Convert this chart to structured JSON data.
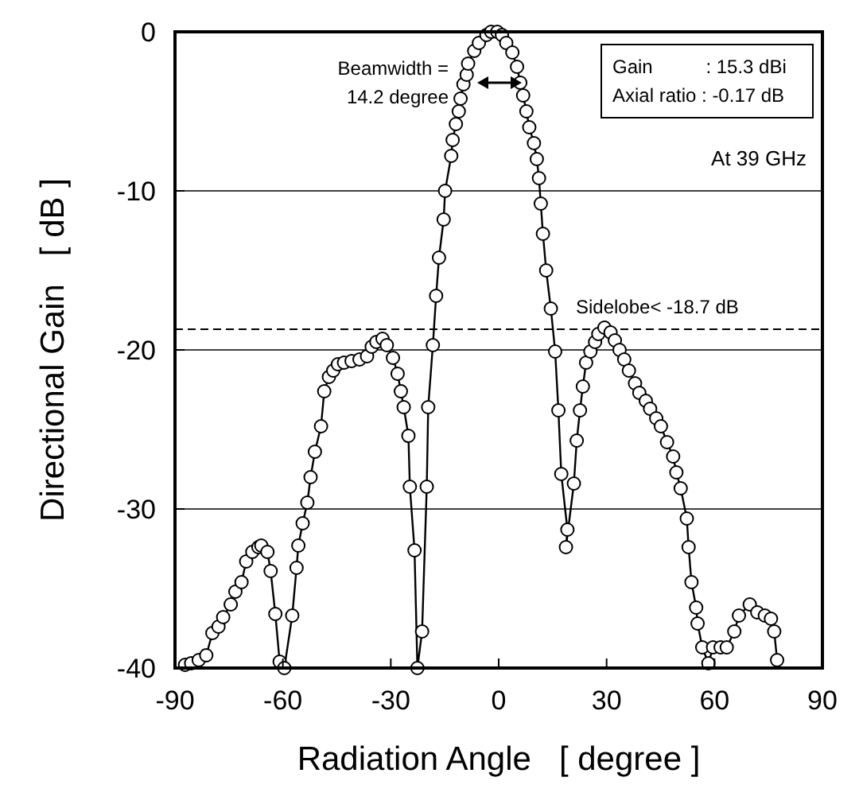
{
  "chart_data": {
    "type": "line",
    "xlabel": "Radiation Angle   [ degree ]",
    "ylabel": "Directional Gain   [ dB ]",
    "x": [
      -87.2,
      -85.5,
      -83.4,
      -81.3,
      -79.6,
      -77.9,
      -76.6,
      -74.5,
      -73.2,
      -71.5,
      -70.2,
      -68.5,
      -66.8,
      -66,
      -64.3,
      -63.4,
      -62.1,
      -60.9,
      -59.6,
      -57.4,
      -56.2,
      -55.7,
      -54.5,
      -53.2,
      -52.3,
      -51.1,
      -49.4,
      -48.5,
      -47.2,
      -46,
      -44.7,
      -43,
      -40.9,
      -38.7,
      -36.6,
      -35.3,
      -34,
      -32.3,
      -31.1,
      -29.4,
      -28.1,
      -27.2,
      -26.4,
      -25.1,
      -24.7,
      -23.4,
      -22.6,
      -21.3,
      -20,
      -19.6,
      -18.3,
      -17.4,
      -16.6,
      -15.3,
      -14.9,
      -13.2,
      -12.8,
      -11.9,
      -11.1,
      -10.6,
      -9.8,
      -8.9,
      -8.5,
      -6.8,
      -5.5,
      -3.4,
      -2.1,
      -0.4,
      0.9,
      2.1,
      3.8,
      5.1,
      6,
      6.8,
      7.7,
      8.5,
      9.8,
      10.6,
      11.2,
      11.7,
      12.3,
      13.2,
      14.5,
      15.7,
      16.6,
      17.4,
      19.1,
      18.7,
      20.9,
      21.7,
      22.6,
      23.4,
      24.3,
      25.5,
      26.8,
      27.7,
      29.4,
      31.1,
      32.3,
      33.6,
      34.9,
      36.2,
      37.9,
      39.1,
      40.9,
      42.1,
      43.8,
      45.1,
      46.8,
      48.5,
      49.4,
      50.6,
      52.3,
      52.8,
      53.6,
      54.9,
      55.3,
      56.6,
      58.3,
      59.6,
      61.7,
      63.4,
      65.5,
      66.8,
      69.8,
      71.9,
      74,
      75.7,
      76.6,
      77.4
    ],
    "series": [
      {
        "color": "#000000",
        "values": [
          -39.8,
          -39.7,
          -39.5,
          -39.2,
          -37.8,
          -37.4,
          -36.8,
          -36,
          -35.2,
          -34.6,
          -33.3,
          -32.7,
          -32.4,
          -32.3,
          -32.7,
          -33.9,
          -36.6,
          -39.6,
          -40,
          -36.7,
          -33.7,
          -32.3,
          -30.9,
          -29.6,
          -28,
          -26.4,
          -24.8,
          -22.6,
          -21.7,
          -21.3,
          -20.9,
          -20.8,
          -20.7,
          -20.6,
          -20.4,
          -19.8,
          -19.5,
          -19.3,
          -19.7,
          -20.5,
          -21.5,
          -22.6,
          -23.6,
          -25.4,
          -28.6,
          -32.6,
          -40,
          -37.7,
          -28.6,
          -23.6,
          -19.7,
          -16.6,
          -14.2,
          -11.8,
          -10,
          -7.8,
          -6.8,
          -5.8,
          -5,
          -4.2,
          -3.3,
          -2.7,
          -2,
          -1.2,
          -0.7,
          -0.2,
          0,
          0,
          -0.2,
          -0.7,
          -1.3,
          -2.2,
          -3.2,
          -4,
          -5,
          -6,
          -7,
          -8,
          -9.2,
          -10.8,
          -12.7,
          -15,
          -17.4,
          -20.1,
          -23.8,
          -27.8,
          -31.3,
          -32.4,
          -28.4,
          -25.7,
          -23.8,
          -22.3,
          -20.8,
          -20.1,
          -19.5,
          -19,
          -18.6,
          -18.9,
          -19.4,
          -20,
          -20.6,
          -21.3,
          -22.1,
          -22.7,
          -23.2,
          -23.7,
          -24.3,
          -24.8,
          -25.8,
          -26.7,
          -27.7,
          -28.7,
          -30.6,
          -32.4,
          -34.6,
          -36.2,
          -37.2,
          -38.7,
          -39.7,
          -38.7,
          -38.7,
          -38.7,
          -37.7,
          -36.7,
          -36,
          -36.5,
          -36.7,
          -36.9,
          -37.7,
          -39.5
        ]
      }
    ],
    "xlim": [
      -90,
      90
    ],
    "xticks": [
      -90,
      -60,
      -30,
      0,
      30,
      60,
      90
    ],
    "ylim": [
      -40,
      0
    ],
    "yticks": [
      -40,
      -30,
      -20,
      -10,
      0
    ],
    "grid": "y",
    "marker": "circle",
    "line_style": "solid",
    "ref_lines": [
      {
        "axis": "y",
        "value": -18.7,
        "label": "Sidelobe< -18.7 dB",
        "line_style": "dashed"
      }
    ],
    "annotations": [
      "Beamwidth =\n14.2 degree",
      "Gain          : 15.3 dBi\nAxial ratio : -0.17 dB",
      "At 39 GHz"
    ]
  }
}
